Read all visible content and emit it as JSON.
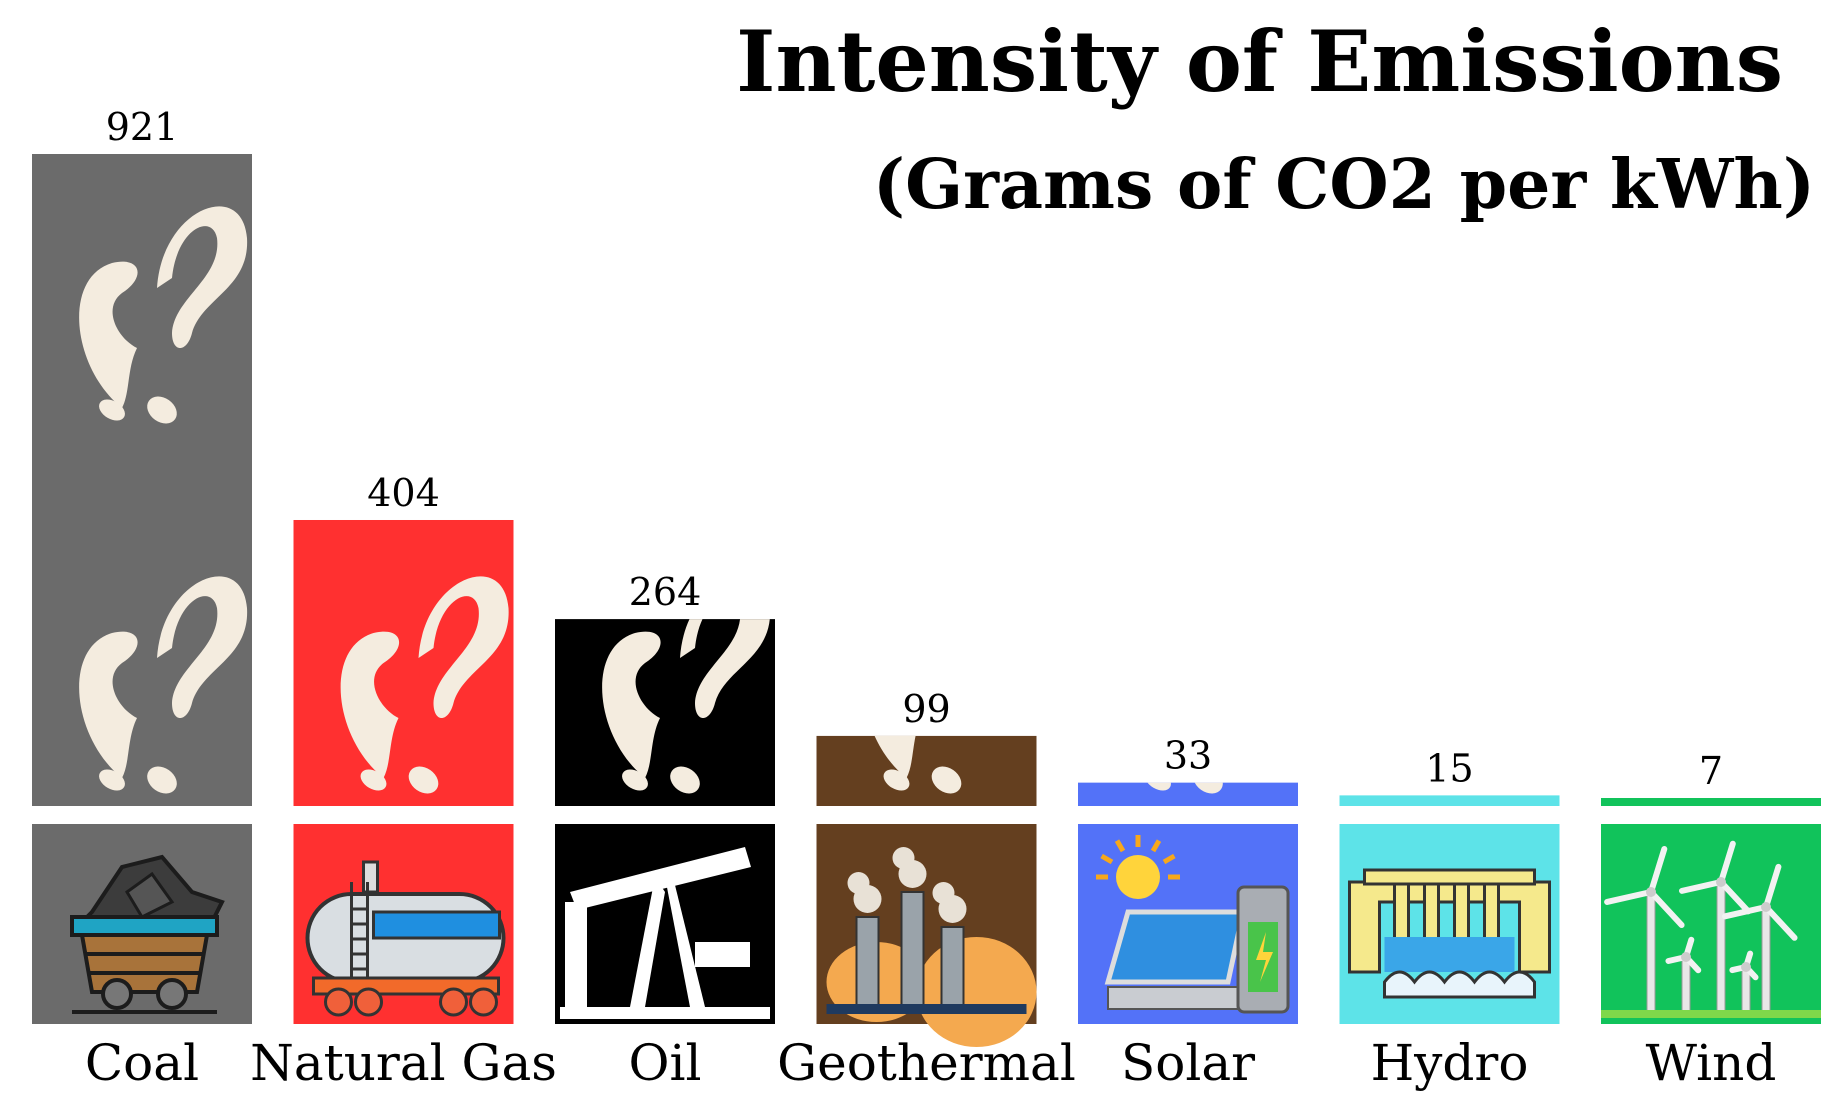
{
  "chart_data": {
    "type": "bar",
    "title": "Intensity of Emissions",
    "subtitle": "(Grams of CO2 per kWh)",
    "categories": [
      "Coal",
      "Natural Gas",
      "Oil",
      "Geothermal",
      "Solar",
      "Hydro",
      "Wind"
    ],
    "values": [
      921,
      404,
      264,
      99,
      33,
      15,
      7
    ],
    "value_labels": [
      "921",
      "404",
      "264",
      "99",
      "33",
      "15",
      "7"
    ],
    "icons": [
      "coal-cart-icon",
      "natural-gas-tanker-icon",
      "oil-pumpjack-icon",
      "geothermal-plant-icon",
      "solar-panel-icon",
      "hydro-dam-icon",
      "wind-turbine-icon"
    ],
    "colors": [
      "#6b6b6b",
      "#ff3030",
      "#000000",
      "#643f1f",
      "#5372f8",
      "#5de3e8",
      "#11c35b"
    ],
    "smoke_color": "#f4ecdf",
    "grid": false,
    "legend": "none"
  }
}
